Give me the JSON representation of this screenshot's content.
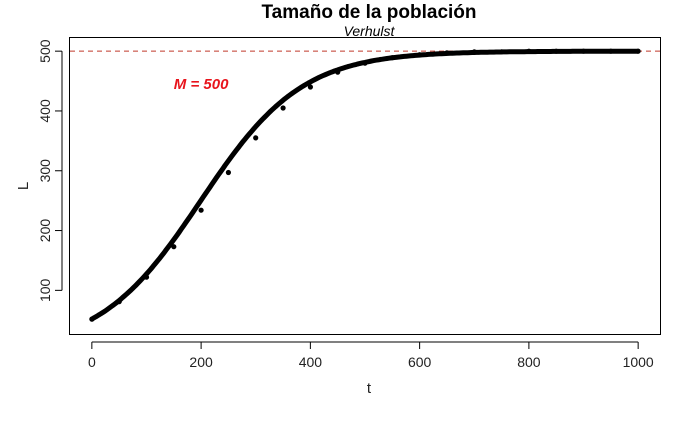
{
  "chart_data": {
    "type": "line",
    "title": "Tamaño de la población",
    "subtitle": "Verhulst",
    "xlabel": "t",
    "ylabel": "L",
    "xlim": [
      -40,
      1040
    ],
    "ylim": [
      27,
      522
    ],
    "x_ticks": [
      0,
      200,
      400,
      600,
      800,
      1000
    ],
    "y_ticks": [
      100,
      200,
      300,
      400,
      500
    ],
    "grid": false,
    "series": [
      {
        "color": "#000000",
        "model": "logistic",
        "M": 500,
        "L0": 52,
        "k": 0.0108,
        "x_range": [
          0,
          1000
        ],
        "x": [
          0,
          50,
          100,
          150,
          200,
          250,
          300,
          350,
          400,
          450,
          500,
          550,
          600,
          650,
          700,
          750,
          800,
          850,
          900,
          950,
          1000
        ],
        "y": [
          52,
          81,
          122,
          173,
          234,
          297,
          355,
          405,
          440,
          465,
          480,
          489,
          494,
          497,
          499,
          499,
          500,
          500,
          500,
          500,
          500
        ]
      }
    ],
    "hline": {
      "y": 500,
      "color": "#c0392b",
      "style": "dashed"
    },
    "annotation": {
      "text": "M = 500",
      "x": 200,
      "y": 445,
      "color": "#e8141c"
    }
  }
}
